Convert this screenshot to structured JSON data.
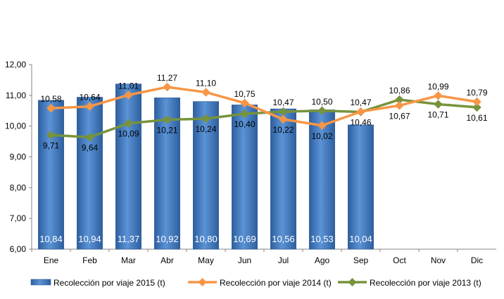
{
  "chart_data": {
    "type": "bar",
    "categories": [
      "Ene",
      "Feb",
      "Mar",
      "Abr",
      "May",
      "Jun",
      "Jul",
      "Ago",
      "Sep",
      "Oct",
      "Nov",
      "Dic"
    ],
    "ylim": [
      6.0,
      12.0
    ],
    "yticks": [
      "6,00",
      "7,00",
      "8,00",
      "9,00",
      "10,00",
      "11,00",
      "12,00"
    ],
    "grid": false,
    "legend_position": "bottom",
    "series": [
      {
        "name": "Recolección por viaje 2015 (t)",
        "type": "bar",
        "color": "#4a7fc4",
        "values": [
          10.84,
          10.94,
          11.37,
          10.92,
          10.8,
          10.69,
          10.56,
          10.53,
          10.04,
          null,
          null,
          null
        ],
        "labels": [
          "10,84",
          "10,94",
          "11,37",
          "10,92",
          "10,80",
          "10,69",
          "10,56",
          "10,53",
          "10,04",
          "",
          "",
          ""
        ]
      },
      {
        "name": "Recolección por viaje 2014 (t)",
        "type": "line",
        "color": "#f79646",
        "values": [
          10.58,
          10.64,
          11.01,
          11.27,
          11.1,
          10.75,
          10.22,
          10.02,
          10.47,
          10.67,
          10.99,
          10.79
        ],
        "labels": [
          "10,58",
          "10,64",
          "11,01",
          "11,27",
          "11,10",
          "10,75",
          "10,22",
          "10,02",
          "10,47",
          "10,67",
          "10,99",
          "10,79"
        ]
      },
      {
        "name": "Recolección por viaje 2013 (t)",
        "type": "line",
        "color": "#77933c",
        "values": [
          9.71,
          9.64,
          10.09,
          10.21,
          10.24,
          10.4,
          10.47,
          10.5,
          10.46,
          10.86,
          10.71,
          10.61
        ],
        "labels": [
          "9,71",
          "9,64",
          "10,09",
          "10,21",
          "10,24",
          "10,40",
          "10,47",
          "10,50",
          "10,46",
          "10,86",
          "10,71",
          "10,61"
        ]
      }
    ]
  }
}
